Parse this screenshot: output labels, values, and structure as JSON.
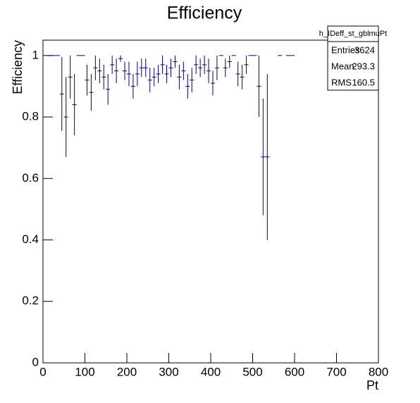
{
  "chart_data": {
    "type": "errorbar",
    "title": "Efficiency",
    "x_label": "Pt",
    "y_label": "Efficiency",
    "xlim": [
      0,
      800
    ],
    "xticks": [
      0,
      100,
      200,
      300,
      400,
      500,
      600,
      700,
      800
    ],
    "ylim": [
      0,
      1.05
    ],
    "yticks": [
      0,
      0.2,
      0.4,
      0.6,
      0.8,
      1
    ],
    "color": "#000080",
    "x": [
      15,
      25,
      35,
      45,
      55,
      65,
      75,
      85,
      95,
      105,
      115,
      125,
      135,
      145,
      155,
      165,
      175,
      185,
      195,
      205,
      215,
      225,
      235,
      245,
      255,
      265,
      275,
      285,
      295,
      305,
      315,
      325,
      335,
      345,
      355,
      365,
      375,
      385,
      395,
      405,
      415,
      425,
      435,
      445,
      455,
      465,
      475,
      485,
      495,
      505,
      515,
      525,
      535,
      565,
      585,
      595
    ],
    "values": [
      1,
      1,
      1,
      0.875,
      0.8,
      0.93,
      0.84,
      1,
      1,
      0.92,
      0.88,
      0.96,
      0.95,
      0.93,
      0.89,
      0.97,
      0.95,
      0.99,
      0.95,
      0.94,
      0.9,
      0.94,
      0.96,
      0.96,
      0.92,
      0.93,
      0.94,
      0.97,
      0.94,
      0.96,
      0.98,
      0.93,
      0.95,
      0.9,
      0.92,
      0.97,
      0.96,
      0.97,
      0.95,
      0.91,
      0.96,
      1,
      0.96,
      0.98,
      1,
      0.94,
      0.93,
      0.97,
      1,
      1,
      0.9,
      0.67,
      0.67,
      1,
      1,
      1
    ],
    "errors": [
      0,
      0,
      0,
      0.12,
      0.13,
      0.07,
      0.1,
      0,
      0,
      0.05,
      0.06,
      0.04,
      0.04,
      0.04,
      0.05,
      0.03,
      0.04,
      0.01,
      0.03,
      0.04,
      0.04,
      0.04,
      0.03,
      0.03,
      0.04,
      0.03,
      0.03,
      0.03,
      0.03,
      0.03,
      0.02,
      0.04,
      0.03,
      0.04,
      0.04,
      0.03,
      0.03,
      0.03,
      0.04,
      0.04,
      0.04,
      0,
      0.03,
      0.02,
      0,
      0.04,
      0.04,
      0.03,
      0,
      0,
      0.1,
      0.19,
      0.27,
      0,
      0,
      0
    ],
    "stats": {
      "title": "h_IDeff_st_gblmuPt",
      "entries": [
        {
          "label": "Entries",
          "value": 3624
        },
        {
          "label": "Mean",
          "value": 293.3
        },
        {
          "label": "RMS",
          "value": 160.5
        }
      ]
    }
  }
}
